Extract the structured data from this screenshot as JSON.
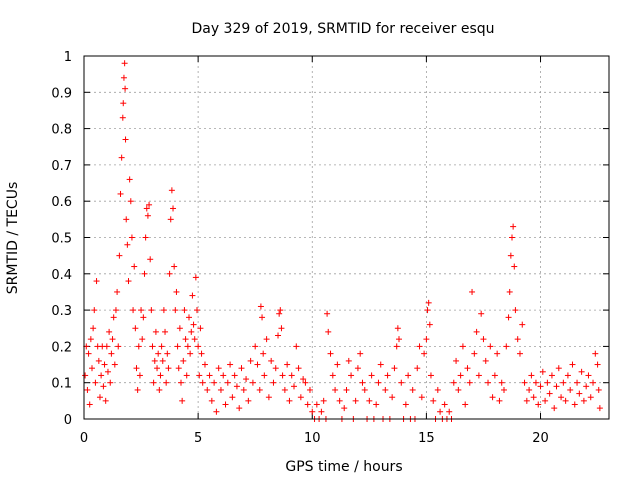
{
  "chart_data": {
    "type": "scatter",
    "title": "Day 329 of 2019, SRMTID for receiver esqu",
    "xlabel": "GPS time / hours",
    "ylabel": "SRMTID / TECUs",
    "xlim": [
      0,
      23
    ],
    "ylim": [
      0,
      1
    ],
    "xticks": [
      0,
      5,
      10,
      15,
      20
    ],
    "xtick_labels": [
      "0",
      "5",
      "10",
      "15",
      "20"
    ],
    "yticks": [
      0,
      0.1,
      0.2,
      0.3,
      0.4,
      0.5,
      0.6,
      0.7,
      0.8,
      0.9,
      1
    ],
    "ytick_labels": [
      "0",
      "0.1",
      "0.2",
      "0.3",
      "0.4",
      "0.5",
      "0.6",
      "0.7",
      "0.8",
      "0.9",
      "1"
    ],
    "grid": true,
    "marker": "+",
    "color": "#ff0000",
    "series": [
      {
        "name": "SRMTID",
        "points": [
          [
            0.05,
            0.12
          ],
          [
            0.1,
            0.2
          ],
          [
            0.15,
            0.08
          ],
          [
            0.2,
            0.18
          ],
          [
            0.25,
            0.04
          ],
          [
            0.3,
            0.22
          ],
          [
            0.35,
            0.14
          ],
          [
            0.4,
            0.25
          ],
          [
            0.45,
            0.3
          ],
          [
            0.5,
            0.1
          ],
          [
            0.55,
            0.38
          ],
          [
            0.6,
            0.2
          ],
          [
            0.65,
            0.16
          ],
          [
            0.7,
            0.06
          ],
          [
            0.75,
            0.12
          ],
          [
            0.8,
            0.2
          ],
          [
            0.85,
            0.09
          ],
          [
            0.9,
            0.15
          ],
          [
            0.95,
            0.05
          ],
          [
            1.0,
            0.2
          ],
          [
            1.05,
            0.13
          ],
          [
            1.1,
            0.24
          ],
          [
            1.15,
            0.1
          ],
          [
            1.2,
            0.18
          ],
          [
            1.25,
            0.22
          ],
          [
            1.3,
            0.28
          ],
          [
            1.35,
            0.15
          ],
          [
            1.4,
            0.3
          ],
          [
            1.45,
            0.35
          ],
          [
            1.5,
            0.2
          ],
          [
            1.55,
            0.45
          ],
          [
            1.6,
            0.62
          ],
          [
            1.65,
            0.72
          ],
          [
            1.7,
            0.83
          ],
          [
            1.72,
            0.87
          ],
          [
            1.75,
            0.94
          ],
          [
            1.78,
            0.98
          ],
          [
            1.8,
            0.91
          ],
          [
            1.82,
            0.77
          ],
          [
            1.85,
            0.55
          ],
          [
            1.9,
            0.48
          ],
          [
            1.95,
            0.38
          ],
          [
            2.0,
            0.66
          ],
          [
            2.05,
            0.6
          ],
          [
            2.1,
            0.5
          ],
          [
            2.15,
            0.3
          ],
          [
            2.2,
            0.42
          ],
          [
            2.25,
            0.25
          ],
          [
            2.3,
            0.14
          ],
          [
            2.35,
            0.08
          ],
          [
            2.4,
            0.2
          ],
          [
            2.45,
            0.12
          ],
          [
            2.5,
            0.3
          ],
          [
            2.55,
            0.22
          ],
          [
            2.6,
            0.28
          ],
          [
            2.65,
            0.4
          ],
          [
            2.7,
            0.5
          ],
          [
            2.75,
            0.58
          ],
          [
            2.8,
            0.56
          ],
          [
            2.85,
            0.59
          ],
          [
            2.9,
            0.44
          ],
          [
            2.95,
            0.3
          ],
          [
            3.0,
            0.2
          ],
          [
            3.05,
            0.1
          ],
          [
            3.1,
            0.16
          ],
          [
            3.15,
            0.24
          ],
          [
            3.2,
            0.14
          ],
          [
            3.25,
            0.18
          ],
          [
            3.3,
            0.08
          ],
          [
            3.35,
            0.12
          ],
          [
            3.4,
            0.2
          ],
          [
            3.45,
            0.16
          ],
          [
            3.5,
            0.3
          ],
          [
            3.55,
            0.24
          ],
          [
            3.6,
            0.1
          ],
          [
            3.65,
            0.18
          ],
          [
            3.7,
            0.14
          ],
          [
            3.75,
            0.4
          ],
          [
            3.8,
            0.55
          ],
          [
            3.85,
            0.63
          ],
          [
            3.9,
            0.58
          ],
          [
            3.95,
            0.42
          ],
          [
            4.0,
            0.3
          ],
          [
            4.05,
            0.35
          ],
          [
            4.1,
            0.2
          ],
          [
            4.15,
            0.14
          ],
          [
            4.2,
            0.25
          ],
          [
            4.25,
            0.1
          ],
          [
            4.3,
            0.05
          ],
          [
            4.35,
            0.16
          ],
          [
            4.4,
            0.3
          ],
          [
            4.45,
            0.22
          ],
          [
            4.5,
            0.12
          ],
          [
            4.55,
            0.2
          ],
          [
            4.6,
            0.28
          ],
          [
            4.65,
            0.18
          ],
          [
            4.7,
            0.24
          ],
          [
            4.75,
            0.34
          ],
          [
            4.8,
            0.26
          ],
          [
            4.85,
            0.22
          ],
          [
            4.9,
            0.39
          ],
          [
            4.95,
            0.3
          ],
          [
            5.0,
            0.2
          ],
          [
            5.05,
            0.12
          ],
          [
            5.1,
            0.25
          ],
          [
            5.15,
            0.18
          ],
          [
            5.2,
            0.1
          ],
          [
            5.3,
            0.15
          ],
          [
            5.4,
            0.08
          ],
          [
            5.5,
            0.12
          ],
          [
            5.6,
            0.05
          ],
          [
            5.7,
            0.1
          ],
          [
            5.8,
            0.02
          ],
          [
            5.9,
            0.14
          ],
          [
            6.0,
            0.08
          ],
          [
            6.1,
            0.12
          ],
          [
            6.2,
            0.04
          ],
          [
            6.3,
            0.1
          ],
          [
            6.4,
            0.15
          ],
          [
            6.5,
            0.06
          ],
          [
            6.6,
            0.12
          ],
          [
            6.7,
            0.09
          ],
          [
            6.8,
            0.03
          ],
          [
            6.9,
            0.14
          ],
          [
            7.0,
            0.08
          ],
          [
            7.1,
            0.11
          ],
          [
            7.2,
            0.05
          ],
          [
            7.3,
            0.16
          ],
          [
            7.4,
            0.1
          ],
          [
            7.5,
            0.2
          ],
          [
            7.6,
            0.15
          ],
          [
            7.7,
            0.08
          ],
          [
            7.75,
            0.31
          ],
          [
            7.8,
            0.28
          ],
          [
            7.85,
            0.18
          ],
          [
            7.9,
            0.12
          ],
          [
            8.0,
            0.22
          ],
          [
            8.1,
            0.06
          ],
          [
            8.2,
            0.16
          ],
          [
            8.3,
            0.1
          ],
          [
            8.4,
            0.14
          ],
          [
            8.5,
            0.23
          ],
          [
            8.55,
            0.29
          ],
          [
            8.6,
            0.3
          ],
          [
            8.65,
            0.25
          ],
          [
            8.7,
            0.12
          ],
          [
            8.8,
            0.08
          ],
          [
            8.9,
            0.15
          ],
          [
            9.0,
            0.05
          ],
          [
            9.1,
            0.12
          ],
          [
            9.2,
            0.09
          ],
          [
            9.3,
            0.2
          ],
          [
            9.4,
            0.14
          ],
          [
            9.5,
            0.06
          ],
          [
            9.6,
            0.11
          ],
          [
            9.7,
            0.1
          ],
          [
            9.8,
            0.04
          ],
          [
            9.9,
            0.08
          ],
          [
            10.0,
            0.02
          ],
          [
            10.1,
            0.0
          ],
          [
            10.2,
            0.04
          ],
          [
            10.3,
            0.0
          ],
          [
            10.4,
            0.02
          ],
          [
            10.5,
            0.05
          ],
          [
            10.6,
            0.0
          ],
          [
            10.65,
            0.29
          ],
          [
            10.7,
            0.24
          ],
          [
            10.8,
            0.18
          ],
          [
            10.9,
            0.12
          ],
          [
            11.0,
            0.08
          ],
          [
            11.1,
            0.15
          ],
          [
            11.2,
            0.05
          ],
          [
            11.3,
            0.0
          ],
          [
            11.4,
            0.03
          ],
          [
            11.5,
            0.08
          ],
          [
            11.6,
            0.16
          ],
          [
            11.7,
            0.12
          ],
          [
            11.8,
            0.0
          ],
          [
            11.9,
            0.05
          ],
          [
            12.0,
            0.14
          ],
          [
            12.1,
            0.18
          ],
          [
            12.2,
            0.1
          ],
          [
            12.3,
            0.08
          ],
          [
            12.4,
            0.0
          ],
          [
            12.5,
            0.05
          ],
          [
            12.6,
            0.12
          ],
          [
            12.7,
            0.0
          ],
          [
            12.8,
            0.04
          ],
          [
            12.9,
            0.1
          ],
          [
            13.0,
            0.15
          ],
          [
            13.1,
            0.0
          ],
          [
            13.2,
            0.08
          ],
          [
            13.3,
            0.12
          ],
          [
            13.4,
            0.0
          ],
          [
            13.5,
            0.06
          ],
          [
            13.6,
            0.14
          ],
          [
            13.7,
            0.2
          ],
          [
            13.75,
            0.25
          ],
          [
            13.8,
            0.22
          ],
          [
            13.9,
            0.1
          ],
          [
            14.0,
            0.0
          ],
          [
            14.1,
            0.04
          ],
          [
            14.2,
            0.12
          ],
          [
            14.3,
            0.0
          ],
          [
            14.4,
            0.08
          ],
          [
            14.5,
            0.0
          ],
          [
            14.6,
            0.14
          ],
          [
            14.7,
            0.2
          ],
          [
            14.8,
            0.06
          ],
          [
            14.9,
            0.18
          ],
          [
            15.0,
            0.22
          ],
          [
            15.05,
            0.3
          ],
          [
            15.1,
            0.32
          ],
          [
            15.15,
            0.26
          ],
          [
            15.2,
            0.12
          ],
          [
            15.3,
            0.05
          ],
          [
            15.4,
            0.0
          ],
          [
            15.5,
            0.08
          ],
          [
            15.6,
            0.02
          ],
          [
            15.7,
            0.0
          ],
          [
            15.8,
            0.04
          ],
          [
            15.9,
            0.0
          ],
          [
            16.0,
            0.02
          ],
          [
            16.1,
            0.0
          ],
          [
            16.2,
            0.1
          ],
          [
            16.3,
            0.16
          ],
          [
            16.4,
            0.08
          ],
          [
            16.5,
            0.12
          ],
          [
            16.6,
            0.2
          ],
          [
            16.7,
            0.04
          ],
          [
            16.8,
            0.14
          ],
          [
            16.9,
            0.1
          ],
          [
            17.0,
            0.35
          ],
          [
            17.1,
            0.18
          ],
          [
            17.2,
            0.24
          ],
          [
            17.3,
            0.12
          ],
          [
            17.4,
            0.29
          ],
          [
            17.5,
            0.22
          ],
          [
            17.6,
            0.16
          ],
          [
            17.7,
            0.1
          ],
          [
            17.8,
            0.2
          ],
          [
            17.9,
            0.06
          ],
          [
            18.0,
            0.12
          ],
          [
            18.1,
            0.18
          ],
          [
            18.2,
            0.05
          ],
          [
            18.3,
            0.1
          ],
          [
            18.4,
            0.08
          ],
          [
            18.5,
            0.2
          ],
          [
            18.6,
            0.28
          ],
          [
            18.65,
            0.35
          ],
          [
            18.7,
            0.45
          ],
          [
            18.75,
            0.5
          ],
          [
            18.8,
            0.53
          ],
          [
            18.85,
            0.42
          ],
          [
            18.9,
            0.3
          ],
          [
            19.0,
            0.22
          ],
          [
            19.1,
            0.18
          ],
          [
            19.2,
            0.26
          ],
          [
            19.3,
            0.1
          ],
          [
            19.4,
            0.05
          ],
          [
            19.5,
            0.08
          ],
          [
            19.6,
            0.12
          ],
          [
            19.7,
            0.06
          ],
          [
            19.8,
            0.1
          ],
          [
            19.9,
            0.04
          ],
          [
            20.0,
            0.09
          ],
          [
            20.1,
            0.13
          ],
          [
            20.2,
            0.05
          ],
          [
            20.3,
            0.1
          ],
          [
            20.4,
            0.07
          ],
          [
            20.5,
            0.12
          ],
          [
            20.6,
            0.03
          ],
          [
            20.7,
            0.09
          ],
          [
            20.8,
            0.14
          ],
          [
            20.9,
            0.06
          ],
          [
            21.0,
            0.1
          ],
          [
            21.1,
            0.05
          ],
          [
            21.2,
            0.12
          ],
          [
            21.3,
            0.08
          ],
          [
            21.4,
            0.15
          ],
          [
            21.5,
            0.04
          ],
          [
            21.6,
            0.1
          ],
          [
            21.7,
            0.07
          ],
          [
            21.8,
            0.13
          ],
          [
            21.9,
            0.05
          ],
          [
            22.0,
            0.09
          ],
          [
            22.1,
            0.12
          ],
          [
            22.2,
            0.06
          ],
          [
            22.3,
            0.1
          ],
          [
            22.4,
            0.18
          ],
          [
            22.5,
            0.15
          ],
          [
            22.55,
            0.08
          ],
          [
            22.6,
            0.03
          ]
        ]
      }
    ]
  }
}
